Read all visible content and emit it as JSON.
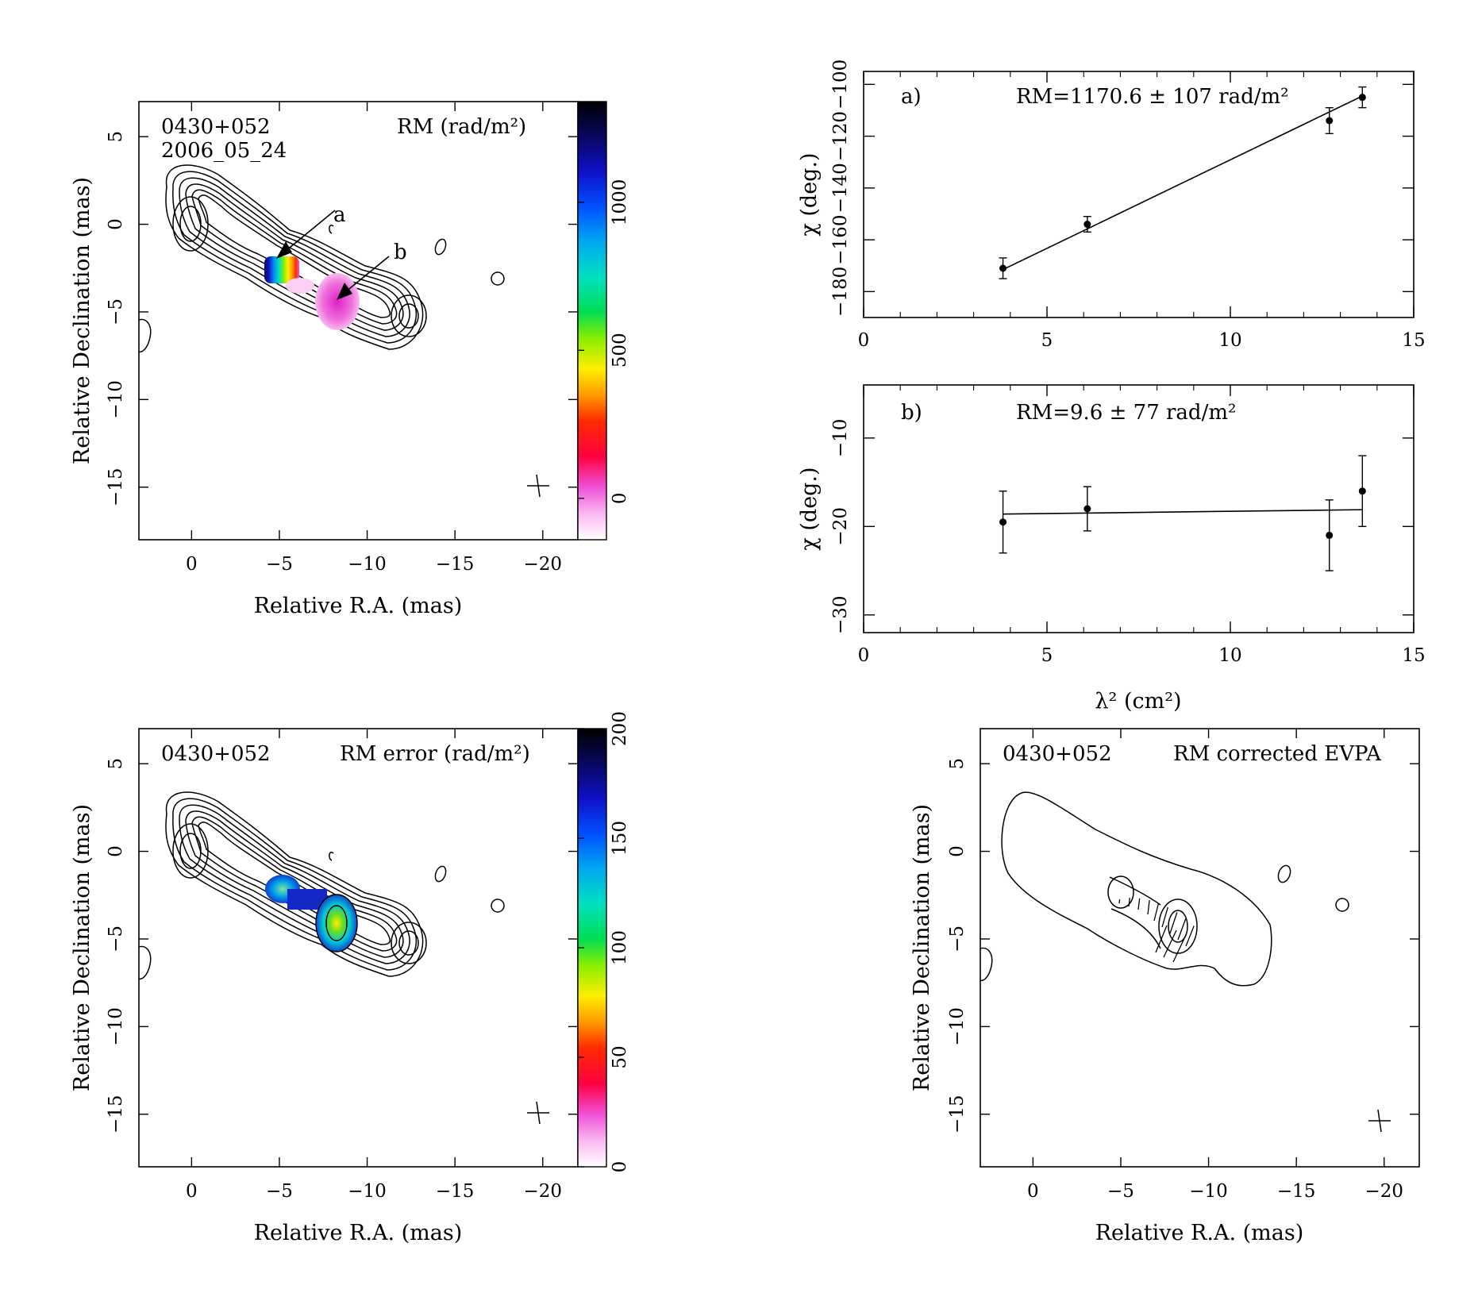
{
  "chart_data": [
    {
      "type": "heatmap",
      "title": "RM (rad/m²)",
      "source_label": "0430+052",
      "epoch_label": "2006_05_24",
      "xlabel": "Relative R.A. (mas)",
      "ylabel": "Relative Declination (mas)",
      "xlim": [
        3,
        -22
      ],
      "ylim": [
        -18,
        7
      ],
      "xticks": [
        "0",
        "−5",
        "−10",
        "−15",
        "−20"
      ],
      "yticks": [
        "5",
        "0",
        "−5",
        "−10",
        "−15"
      ],
      "colorbar": {
        "range": [
          -140,
          1340
        ],
        "ticks": [
          "0",
          "500",
          "1000"
        ]
      },
      "markers": [
        "a",
        "b"
      ],
      "regions": [
        {
          "x": -5.3,
          "y": -2.7,
          "value": 1170
        },
        {
          "x": -8.2,
          "y": -4.4,
          "value": 10
        }
      ]
    },
    {
      "type": "scatter",
      "panel_label": "a)",
      "annotation": "RM=1170.6 ± 107 rad/m²",
      "ylabel": "χ (deg.)",
      "xlim": [
        0,
        15
      ],
      "ylim": [
        -190,
        -95
      ],
      "xticks": [
        "0",
        "5",
        "10",
        "15"
      ],
      "yticks": [
        "−180",
        "−160",
        "−140",
        "−120",
        "−100"
      ],
      "x": [
        3.8,
        6.1,
        12.7,
        13.6
      ],
      "y": [
        -171,
        -154,
        -114,
        -105
      ],
      "yerr": [
        4,
        3,
        5,
        4
      ],
      "fit": {
        "x": [
          3.8,
          13.6
        ],
        "y": [
          -171.5,
          -104.5
        ]
      }
    },
    {
      "type": "scatter",
      "panel_label": "b)",
      "annotation": "RM=9.6 ± 77 rad/m²",
      "xlabel": "λ² (cm²)",
      "ylabel": "χ (deg.)",
      "xlim": [
        0,
        15
      ],
      "ylim": [
        -32,
        -4
      ],
      "xticks": [
        "0",
        "5",
        "10",
        "15"
      ],
      "yticks": [
        "−10",
        "−20",
        "−30"
      ],
      "x": [
        3.8,
        6.1,
        12.7,
        13.6
      ],
      "y": [
        -19.5,
        -18,
        -21,
        -16
      ],
      "yerr": [
        3.5,
        2.5,
        4,
        4
      ],
      "fit": {
        "x": [
          3.8,
          13.6
        ],
        "y": [
          -18.6,
          -18.1
        ]
      }
    },
    {
      "type": "heatmap",
      "title": "RM error (rad/m²)",
      "source_label": "0430+052",
      "xlabel": "Relative R.A. (mas)",
      "ylabel": "Relative Declination (mas)",
      "xlim": [
        3,
        -22
      ],
      "ylim": [
        -18,
        7
      ],
      "xticks": [
        "0",
        "−5",
        "−10",
        "−15",
        "−20"
      ],
      "yticks": [
        "5",
        "0",
        "−5",
        "−10",
        "−15"
      ],
      "colorbar": {
        "range": [
          0,
          200
        ],
        "ticks": [
          "0",
          "50",
          "100",
          "150",
          "200"
        ]
      }
    },
    {
      "type": "heatmap",
      "title": "RM corrected EVPA",
      "source_label": "0430+052",
      "xlabel": "Relative R.A. (mas)",
      "ylabel": "Relative Declination (mas)",
      "xlim": [
        3,
        -22
      ],
      "ylim": [
        -18,
        7
      ],
      "xticks": [
        "0",
        "−5",
        "−10",
        "−15",
        "−20"
      ],
      "yticks": [
        "5",
        "0",
        "−5",
        "−10",
        "−15"
      ]
    }
  ]
}
